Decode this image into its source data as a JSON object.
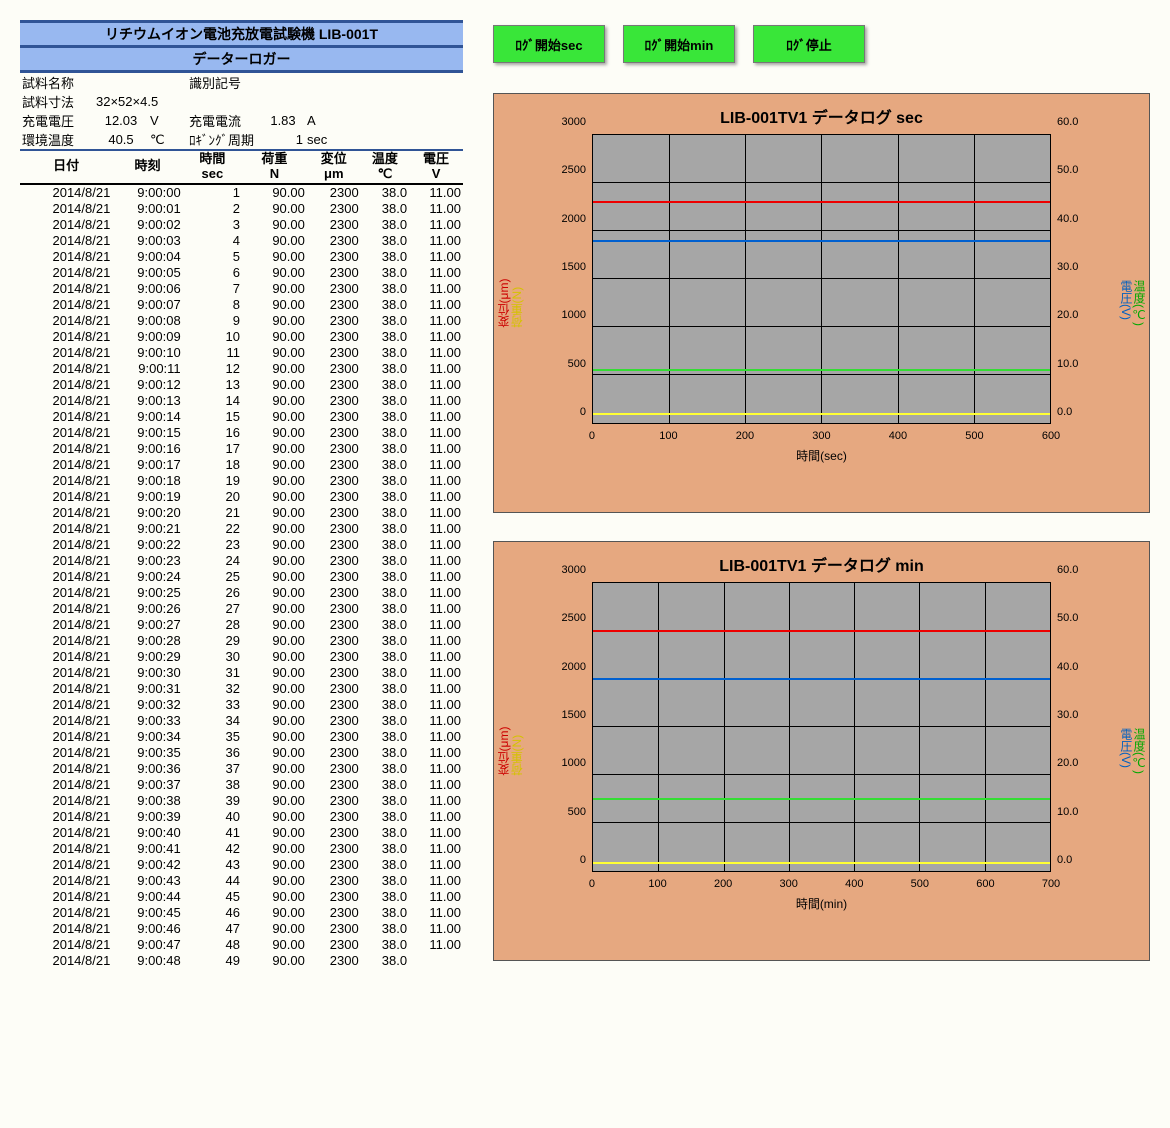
{
  "header": {
    "title": "リチウムイオン電池充放電試験機 LIB-001T",
    "subtitle": "データーロガー"
  },
  "meta": {
    "sample_name_label": "試料名称",
    "id_label": "識別記号",
    "sample_size_label": "試料寸法",
    "sample_size_value": "32×52×4.5",
    "charge_v_label": "充電電圧",
    "charge_v_value": "12.03",
    "charge_v_unit": "V",
    "charge_i_label": "充電電流",
    "charge_i_value": "1.83",
    "charge_i_unit": "A",
    "env_temp_label": "環境温度",
    "env_temp_value": "40.5",
    "env_temp_unit": "℃",
    "log_period_label": "ﾛｷﾞﾝｸﾞ周期",
    "log_period_value": "1",
    "log_period_unit": "sec"
  },
  "columns": {
    "date": "日付",
    "time": "時刻",
    "sec": "時間",
    "sec_unit": "sec",
    "load": "荷重",
    "load_unit": "N",
    "disp": "変位",
    "disp_unit": "μm",
    "temp": "温度",
    "temp_unit": "℃",
    "volt": "電圧",
    "volt_unit": "V"
  },
  "data": {
    "date": "2014/8/21",
    "time_prefix": "9:00:",
    "row_count": 49,
    "load": "90.00",
    "disp": "2300",
    "temp": "38.0",
    "volt": "11.00"
  },
  "buttons": {
    "start_sec": "ﾛｸﾞ開始sec",
    "start_min": "ﾛｸﾞ開始min",
    "stop": "ﾛｸﾞ停止"
  },
  "charts": [
    {
      "title": "LIB-001TV1 データログ sec",
      "x_label": "時間(sec)",
      "left_axis": {
        "min": 0,
        "max": 3000,
        "step": 500
      },
      "right_axis": {
        "min": 0,
        "max": 60,
        "step": 10,
        "decimals": 1
      },
      "x_axis": {
        "min": 0,
        "max": 600,
        "step": 100
      },
      "left_labels": [
        {
          "text": "変位(μm)",
          "color": "#cc0000"
        },
        {
          "text": "荷重(N)",
          "color": "#d4c200"
        }
      ],
      "right_labels": [
        {
          "text": "温度(℃)",
          "color": "#00a800"
        },
        {
          "text": "電圧(V)",
          "color": "#0060c0"
        }
      ],
      "series": [
        {
          "name": "disp",
          "color": "#ee0000",
          "value": 2300,
          "axis": "left"
        },
        {
          "name": "load-right",
          "color": "#0060d0",
          "value": 38,
          "axis": "right"
        },
        {
          "name": "volt",
          "color": "#33dd33",
          "value": 11,
          "axis": "right"
        },
        {
          "name": "load",
          "color": "#ffff33",
          "value": 90,
          "axis": "left"
        }
      ]
    },
    {
      "title": "LIB-001TV1 データログ min",
      "x_label": "時間(min)",
      "left_axis": {
        "min": 0,
        "max": 3000,
        "step": 500
      },
      "right_axis": {
        "min": 0,
        "max": 60,
        "step": 10,
        "decimals": 1
      },
      "x_axis": {
        "min": 0,
        "max": 700,
        "step": 100
      },
      "left_labels": [
        {
          "text": "変位(μm)",
          "color": "#cc0000"
        },
        {
          "text": "荷重(N)",
          "color": "#d4c200"
        }
      ],
      "right_labels": [
        {
          "text": "温度(℃)",
          "color": "#00a800"
        },
        {
          "text": "電圧(V)",
          "color": "#0060c0"
        }
      ],
      "series": [
        {
          "name": "disp",
          "color": "#ee0000",
          "value": 2500,
          "axis": "left"
        },
        {
          "name": "load-right",
          "color": "#0060d0",
          "value": 40,
          "axis": "right"
        },
        {
          "name": "temp",
          "color": "#33dd33",
          "value": 15,
          "axis": "right"
        },
        {
          "name": "load",
          "color": "#ffff33",
          "value": 80,
          "axis": "left"
        }
      ]
    }
  ]
}
